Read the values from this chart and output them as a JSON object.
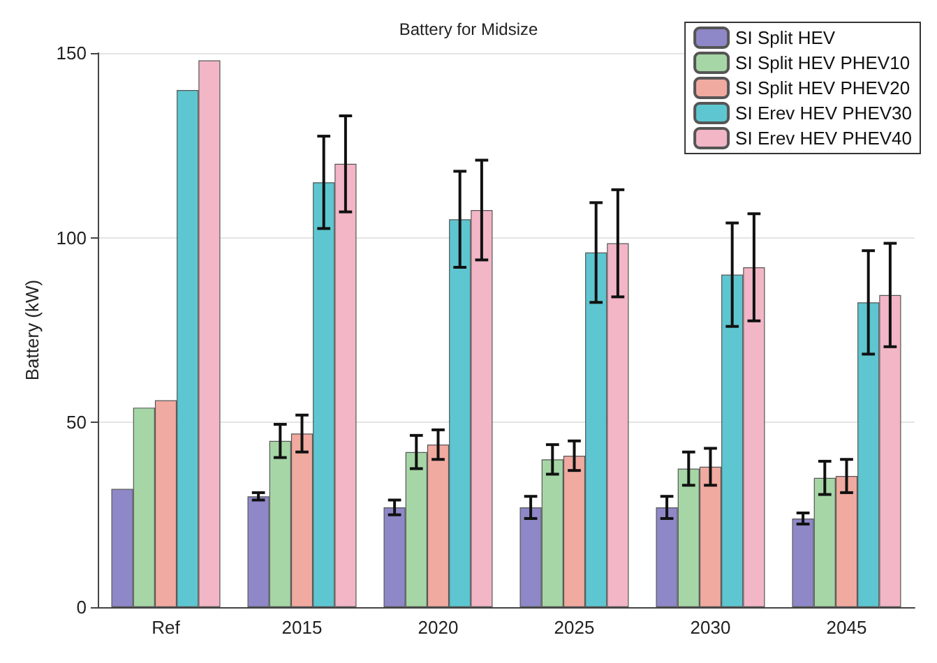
{
  "chart_data": {
    "type": "bar",
    "title": "Battery for Midsize",
    "ylabel": "Battery (kW)",
    "categories": [
      "Ref",
      "2015",
      "2020",
      "2025",
      "2030",
      "2045"
    ],
    "ylim": [
      0,
      150
    ],
    "yticks": [
      0,
      50,
      100,
      150
    ],
    "grid": "y",
    "legend": "top right",
    "series": [
      {
        "name": "SI Split HEV",
        "color": "#8e88c8",
        "values": [
          32,
          30,
          27,
          27,
          27,
          24
        ],
        "errors": [
          null,
          1,
          2,
          3,
          3,
          1.5
        ]
      },
      {
        "name": "SI Split HEV PHEV10",
        "color": "#a6d6a6",
        "values": [
          54,
          45,
          42,
          40,
          37.5,
          35
        ],
        "errors": [
          null,
          4.5,
          4.5,
          4,
          4.5,
          4.5
        ]
      },
      {
        "name": "SI Split HEV PHEV20",
        "color": "#f0aaa0",
        "values": [
          56,
          47,
          44,
          41,
          38,
          35.5
        ],
        "errors": [
          null,
          5,
          4,
          4,
          5,
          4.5
        ]
      },
      {
        "name": "SI Erev HEV PHEV30",
        "color": "#5ec6d0",
        "values": [
          140,
          115,
          105,
          96,
          90,
          82.5
        ],
        "errors": [
          null,
          12.5,
          13,
          13.5,
          14,
          14
        ]
      },
      {
        "name": "SI Erev HEV PHEV40",
        "color": "#f2b6c6",
        "values": [
          148,
          120,
          107.5,
          98.5,
          92,
          84.5
        ],
        "errors": [
          null,
          13,
          13.5,
          14.5,
          14.5,
          14
        ]
      }
    ]
  }
}
